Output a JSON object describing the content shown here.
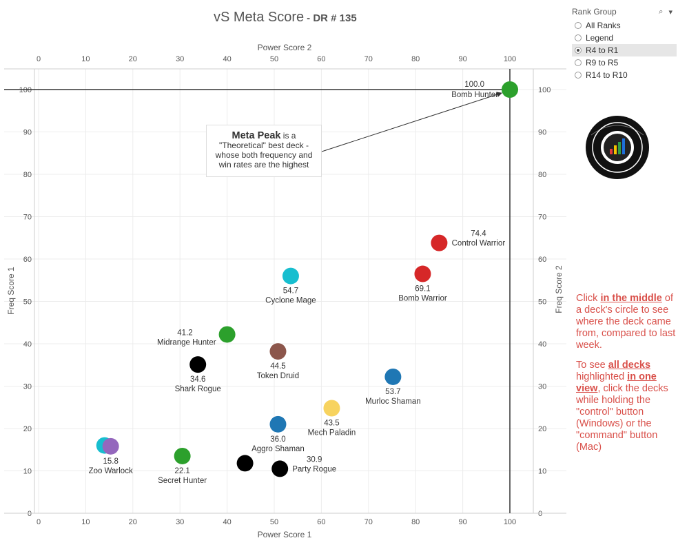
{
  "title": "vS Meta Score",
  "subtitle": "- DR # 135",
  "legend": {
    "title": "Rank Group",
    "items": [
      {
        "label": "All Ranks",
        "selected": false
      },
      {
        "label": "Legend",
        "selected": false
      },
      {
        "label": "R4 to R1",
        "selected": true
      },
      {
        "label": "R9 to R5",
        "selected": false
      },
      {
        "label": "R14 to R10",
        "selected": false
      }
    ]
  },
  "annotation": {
    "bold": "Meta Peak",
    "line1": "is a",
    "line2": "\"Theoretical\" best deck -",
    "line3": "whose both frequency and",
    "line4": "win rates are the highest"
  },
  "note": {
    "p1_a": "Click ",
    "p1_b": "in the middle",
    "p1_c": " of a deck's circle to see where the deck came from, compared to last week.",
    "p2_a": "To see ",
    "p2_b": "all decks ",
    "p2_c": " highlighted ",
    "p2_d": "in one view",
    "p2_e": ", click the decks while holding the \"control\" button (Windows) or the \"command\" button (Mac)"
  },
  "colors": {
    "green": "#2ca02c",
    "red": "#d62728",
    "cyan": "#17becf",
    "brown": "#8c564b",
    "black": "#000000",
    "blue": "#1f77b4",
    "yellow": "#f7d35f",
    "purple": "#9467bd",
    "note": "#d9504a"
  },
  "chart_data": {
    "type": "scatter",
    "x_label": "Power Score 1",
    "x2_label": "Power Score 2",
    "y_label": "Freq Score 1",
    "y2_label": "Freq Score 2",
    "xlim": [
      0,
      100
    ],
    "ylim": [
      0,
      100
    ],
    "x_ticks": [
      0,
      10,
      20,
      30,
      40,
      50,
      60,
      70,
      80,
      90,
      100
    ],
    "y_ticks": [
      0,
      10,
      20,
      30,
      40,
      50,
      60,
      70,
      80,
      90,
      100
    ],
    "reference_lines": {
      "x": 100,
      "y": 100
    },
    "points": [
      {
        "name": "Bomb Hunter",
        "score": "100.0",
        "x": 100,
        "y": 100,
        "color": "green",
        "label_pos": "left"
      },
      {
        "name": "Control Warrior",
        "score": "74.4",
        "x": 85,
        "y": 63.8,
        "color": "red",
        "label_pos": "right"
      },
      {
        "name": "Bomb Warrior",
        "score": "69.1",
        "x": 81.5,
        "y": 56.5,
        "color": "red",
        "label_pos": "below"
      },
      {
        "name": "Cyclone Mage",
        "score": "54.7",
        "x": 53.5,
        "y": 56,
        "color": "cyan",
        "label_pos": "below"
      },
      {
        "name": "Midrange Hunter",
        "score": "41.2",
        "x": 40,
        "y": 42.2,
        "color": "green",
        "label_pos": "left"
      },
      {
        "name": "Token Druid",
        "score": "44.5",
        "x": 50.8,
        "y": 38.2,
        "color": "brown",
        "label_pos": "below"
      },
      {
        "name": "Shark Rogue",
        "score": "34.6",
        "x": 33.8,
        "y": 35.1,
        "color": "black",
        "label_pos": "below"
      },
      {
        "name": "Murloc Shaman",
        "score": "53.7",
        "x": 75.2,
        "y": 32.2,
        "color": "blue",
        "label_pos": "below"
      },
      {
        "name": "Mech Paladin",
        "score": "43.5",
        "x": 62.2,
        "y": 24.8,
        "color": "yellow",
        "label_pos": "below"
      },
      {
        "name": "Aggro Shaman",
        "score": "36.0",
        "x": 50.8,
        "y": 21,
        "color": "blue",
        "label_pos": "below"
      },
      {
        "name": "Zoo Warlock",
        "score": "15.8",
        "x": 15.3,
        "y": 15.8,
        "color": "purple",
        "label_pos": "below"
      },
      {
        "name": "Secret Hunter",
        "score": "22.1",
        "x": 30.5,
        "y": 13.5,
        "color": "green",
        "label_pos": "below"
      },
      {
        "name": "Party Rogue",
        "score": "30.9",
        "x": 51.2,
        "y": 10.5,
        "color": "black",
        "label_pos": "right"
      }
    ],
    "unlabeled_points": [
      {
        "x": 14,
        "y": 16,
        "color": "cyan"
      },
      {
        "x": 43.8,
        "y": 11.8,
        "color": "black"
      }
    ]
  }
}
